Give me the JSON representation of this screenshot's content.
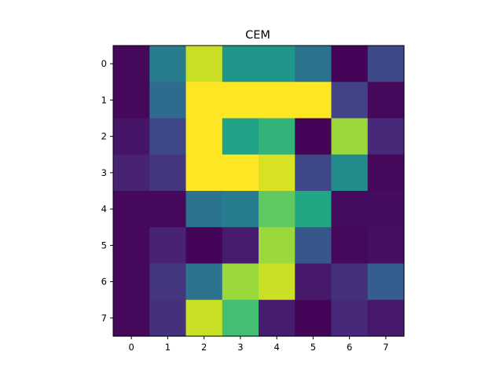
{
  "chart_data": {
    "type": "heatmap",
    "title": "CEM",
    "xlabel": "",
    "ylabel": "",
    "x_ticks": [
      "0",
      "1",
      "2",
      "3",
      "4",
      "5",
      "6",
      "7"
    ],
    "y_ticks": [
      "0",
      "1",
      "2",
      "3",
      "4",
      "5",
      "6",
      "7"
    ],
    "colormap": "viridis",
    "value_range": [
      0,
      1
    ],
    "grid": false,
    "values": [
      [
        0.02,
        0.42,
        0.92,
        0.52,
        0.52,
        0.38,
        0.01,
        0.22
      ],
      [
        0.02,
        0.35,
        1.0,
        1.0,
        1.0,
        1.0,
        0.2,
        0.02
      ],
      [
        0.06,
        0.22,
        1.0,
        0.58,
        0.65,
        0.01,
        0.85,
        0.12
      ],
      [
        0.1,
        0.16,
        1.0,
        1.0,
        0.94,
        0.22,
        0.48,
        0.02
      ],
      [
        0.02,
        0.02,
        0.38,
        0.42,
        0.75,
        0.6,
        0.03,
        0.03
      ],
      [
        0.02,
        0.1,
        0.01,
        0.08,
        0.85,
        0.27,
        0.02,
        0.04
      ],
      [
        0.02,
        0.16,
        0.38,
        0.85,
        0.92,
        0.07,
        0.14,
        0.3
      ],
      [
        0.02,
        0.14,
        0.92,
        0.7,
        0.08,
        0.01,
        0.12,
        0.07
      ]
    ]
  }
}
